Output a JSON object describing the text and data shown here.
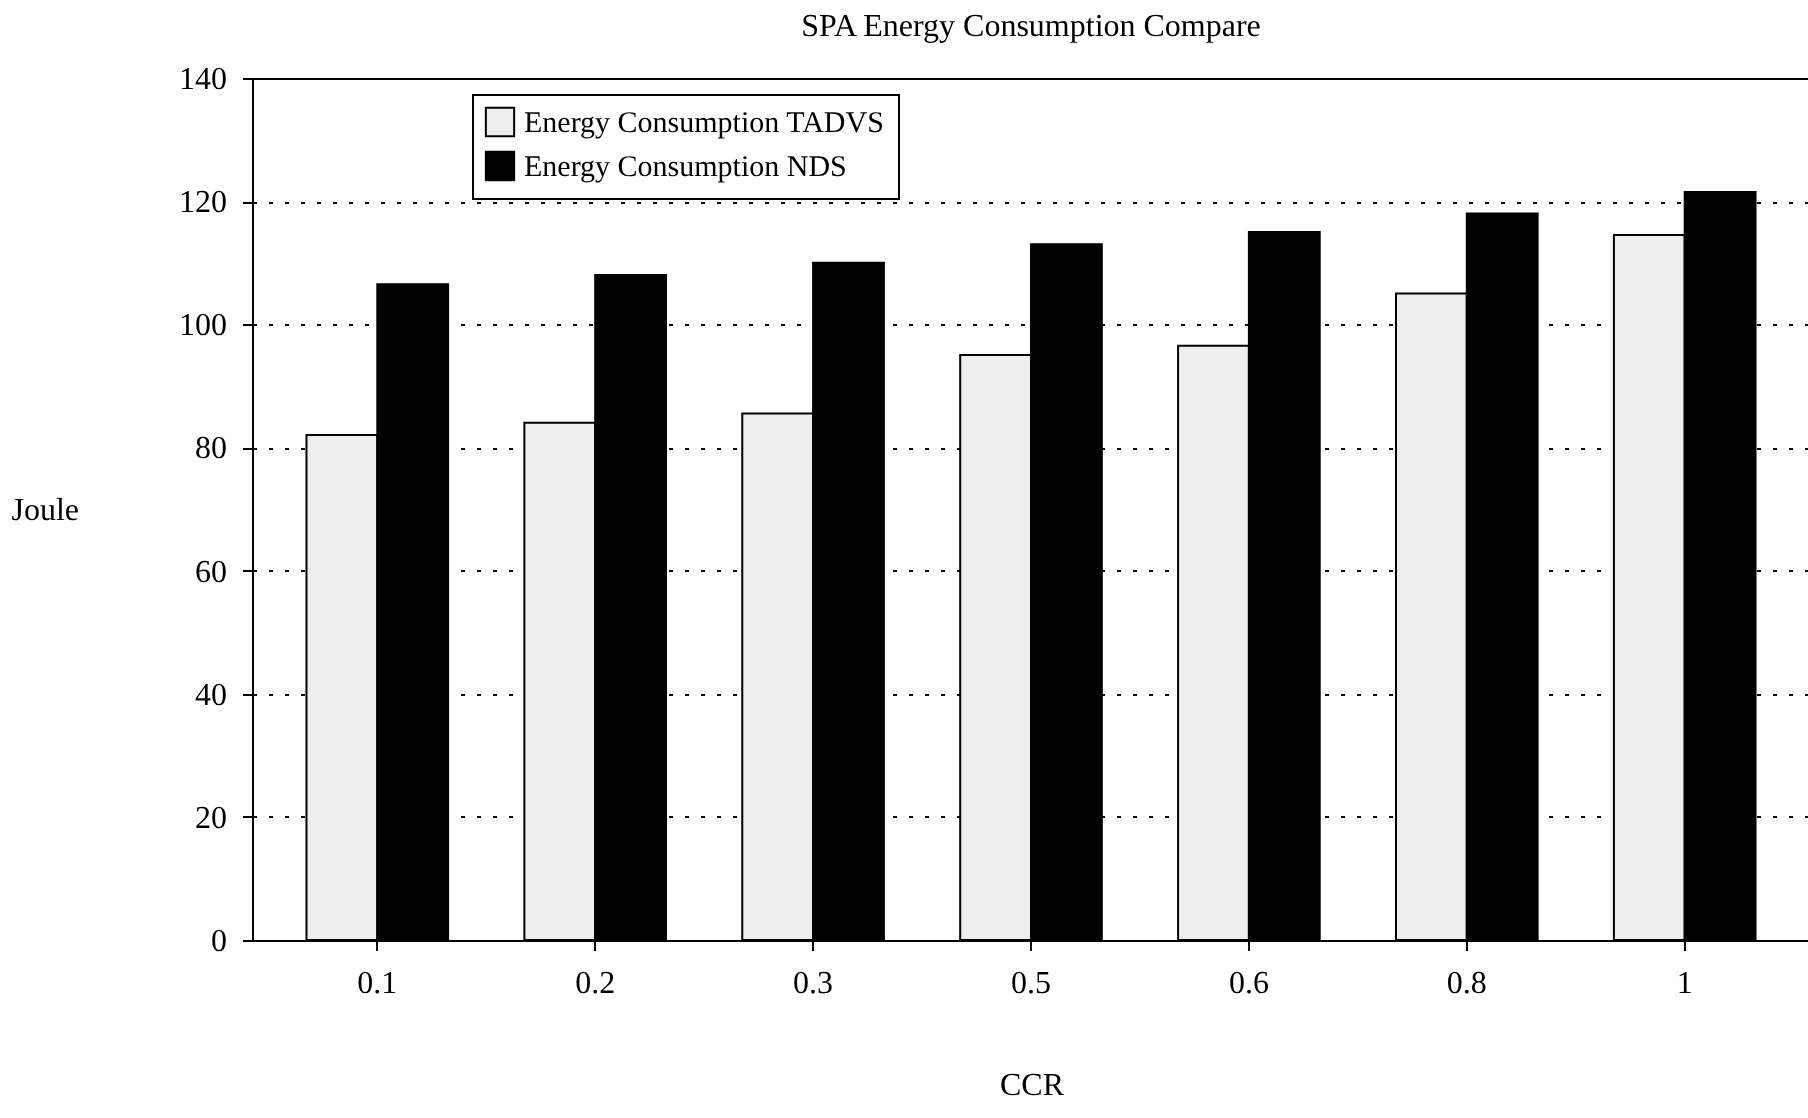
{
  "chart_data": {
    "type": "bar",
    "title": "SPA Energy Consumption Compare",
    "xlabel": "CCR",
    "ylabel": "Joule",
    "categories": [
      "0.1",
      "0.2",
      "0.3",
      "0.5",
      "0.6",
      "0.8",
      "1"
    ],
    "series": [
      {
        "name": "Energy Consumption TADVS",
        "color": "#eeeeee",
        "values": [
          82,
          84,
          85.5,
          95,
          96.5,
          105,
          114.5
        ]
      },
      {
        "name": "Energy Consumption NDS",
        "color": "#000000",
        "values": [
          106.5,
          108,
          110,
          113,
          115,
          118,
          121.5
        ]
      }
    ],
    "ylim": [
      0,
      140
    ],
    "yticks": [
      0,
      20,
      40,
      60,
      80,
      100,
      120,
      140
    ],
    "grid": "y",
    "legend": "top left"
  }
}
